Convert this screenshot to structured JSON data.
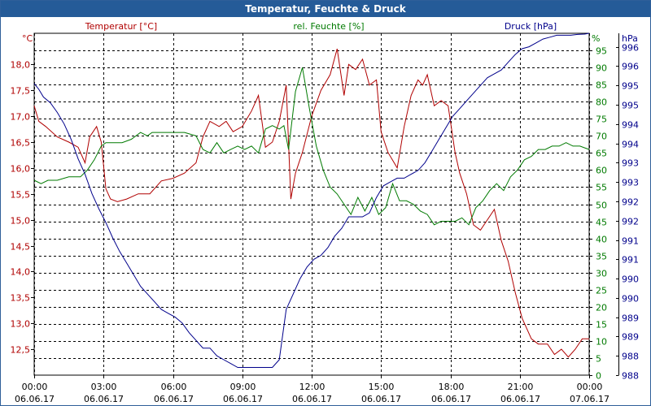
{
  "window": {
    "title": "Temperatur, Feuchte & Druck"
  },
  "colors": {
    "temperature": "#b00000",
    "humidity": "#007a00",
    "pressure": "#00008b",
    "grid": "#000000",
    "title_bg": "#255b98"
  },
  "chart_data": {
    "type": "line",
    "title": "Temperatur, Feuchte & Druck",
    "grid": true,
    "x_ticks": [
      {
        "time": "00:00",
        "date": "06.06.17"
      },
      {
        "time": "03:00",
        "date": "06.06.17"
      },
      {
        "time": "06:00",
        "date": "06.06.17"
      },
      {
        "time": "09:00",
        "date": "06.06.17"
      },
      {
        "time": "12:00",
        "date": "06.06.17"
      },
      {
        "time": "15:00",
        "date": "06.06.17"
      },
      {
        "time": "18:00",
        "date": "06.06.17"
      },
      {
        "time": "21:00",
        "date": "06.06.17"
      },
      {
        "time": "00:00",
        "date": "07.06.17"
      }
    ],
    "x_range_hours": [
      0,
      24
    ],
    "axes": {
      "temperature": {
        "label": "Temperatur [°C]",
        "unit": "°C",
        "range": [
          12,
          18.6
        ],
        "ticks": [
          {
            "v": 12.5,
            "t": "12,5"
          },
          {
            "v": 13,
            "t": "13,0"
          },
          {
            "v": 13.5,
            "t": "13,5"
          },
          {
            "v": 14,
            "t": "14,0"
          },
          {
            "v": 14.5,
            "t": "14,5"
          },
          {
            "v": 15,
            "t": "15,0"
          },
          {
            "v": 15.5,
            "t": "15,5"
          },
          {
            "v": 16,
            "t": "16,0"
          },
          {
            "v": 16.5,
            "t": "16,5"
          },
          {
            "v": 17,
            "t": "17,0"
          },
          {
            "v": 17.5,
            "t": "17,5"
          },
          {
            "v": 18,
            "t": "18,0"
          }
        ]
      },
      "humidity": {
        "label": "rel. Feuchte [%]",
        "unit": "%",
        "range": [
          0,
          100
        ],
        "ticks": [
          0,
          5,
          10,
          15,
          20,
          25,
          30,
          35,
          40,
          45,
          50,
          55,
          60,
          65,
          70,
          75,
          80,
          85,
          90,
          95
        ]
      },
      "pressure": {
        "label": "Druck [hPa]",
        "unit": "hPa",
        "range": [
          987.8,
          996.65
        ],
        "ticks": [
          {
            "v": 987.8,
            "t": "988"
          },
          {
            "v": 988.3,
            "t": "988"
          },
          {
            "v": 988.8,
            "t": "989"
          },
          {
            "v": 989.3,
            "t": "989"
          },
          {
            "v": 989.8,
            "t": "990"
          },
          {
            "v": 990.3,
            "t": "990"
          },
          {
            "v": 990.8,
            "t": "991"
          },
          {
            "v": 991.3,
            "t": "991"
          },
          {
            "v": 991.8,
            "t": "992"
          },
          {
            "v": 992.3,
            "t": "992"
          },
          {
            "v": 992.8,
            "t": "993"
          },
          {
            "v": 993.3,
            "t": "993"
          },
          {
            "v": 993.8,
            "t": "994"
          },
          {
            "v": 994.3,
            "t": "994"
          },
          {
            "v": 994.8,
            "t": "995"
          },
          {
            "v": 995.3,
            "t": "995"
          },
          {
            "v": 995.8,
            "t": "996"
          },
          {
            "v": 996.3,
            "t": "996"
          }
        ]
      }
    },
    "series": [
      {
        "name": "Temperatur [°C]",
        "axis": "temperature",
        "x": [
          0,
          0.2,
          0.5,
          1,
          1.5,
          1.9,
          2.2,
          2.4,
          2.7,
          2.9,
          3.1,
          3.3,
          3.6,
          4,
          4.5,
          5,
          5.5,
          6,
          6.5,
          7,
          7.3,
          7.6,
          8,
          8.3,
          8.6,
          9,
          9.4,
          9.7,
          10,
          10.3,
          10.6,
          10.9,
          11.1,
          11.3,
          11.6,
          12,
          12.4,
          12.8,
          13.1,
          13.4,
          13.6,
          13.9,
          14.2,
          14.5,
          14.8,
          15,
          15.3,
          15.7,
          16,
          16.3,
          16.6,
          16.8,
          17,
          17.3,
          17.6,
          17.9,
          18.2,
          18.4,
          18.7,
          19,
          19.3,
          19.6,
          19.9,
          20.2,
          20.5,
          20.8,
          21.1,
          21.5,
          21.8,
          22.2,
          22.5,
          22.8,
          23.1,
          23.4,
          23.7,
          24
        ],
        "y": [
          17.2,
          16.9,
          16.8,
          16.6,
          16.5,
          16.4,
          16.1,
          16.6,
          16.8,
          16.5,
          15.6,
          15.4,
          15.35,
          15.4,
          15.5,
          15.5,
          15.75,
          15.8,
          15.9,
          16.1,
          16.6,
          16.9,
          16.8,
          16.9,
          16.7,
          16.8,
          17.1,
          17.4,
          16.4,
          16.5,
          16.9,
          17.6,
          15.4,
          15.9,
          16.3,
          17.0,
          17.5,
          17.8,
          18.3,
          17.4,
          18.0,
          17.9,
          18.1,
          17.6,
          17.7,
          16.7,
          16.3,
          16.0,
          16.8,
          17.4,
          17.7,
          17.6,
          17.8,
          17.2,
          17.3,
          17.2,
          16.3,
          15.9,
          15.5,
          14.9,
          14.8,
          15.0,
          15.2,
          14.6,
          14.2,
          13.6,
          13.1,
          12.7,
          12.6,
          12.6,
          12.4,
          12.5,
          12.35,
          12.5,
          12.7,
          12.7
        ]
      },
      {
        "name": "rel. Feuchte [%]",
        "axis": "humidity",
        "x": [
          0,
          0.3,
          0.6,
          1,
          1.5,
          2,
          2.3,
          2.6,
          2.9,
          3.1,
          3.4,
          3.8,
          4.2,
          4.6,
          4.9,
          5.1,
          5.5,
          6,
          6.5,
          7,
          7.3,
          7.6,
          7.9,
          8.2,
          8.5,
          8.8,
          9.1,
          9.4,
          9.7,
          10,
          10.3,
          10.6,
          10.8,
          11,
          11.3,
          11.6,
          11.9,
          12.2,
          12.5,
          12.8,
          13.1,
          13.4,
          13.7,
          14,
          14.3,
          14.6,
          14.9,
          15.2,
          15.5,
          15.8,
          16.1,
          16.4,
          16.7,
          17,
          17.3,
          17.6,
          17.9,
          18.2,
          18.5,
          18.8,
          19.1,
          19.4,
          19.7,
          20,
          20.3,
          20.6,
          20.9,
          21.2,
          21.5,
          21.8,
          22.1,
          22.4,
          22.7,
          23,
          23.3,
          23.6,
          24
        ],
        "y": [
          57,
          56,
          57,
          57,
          58,
          58,
          60,
          63,
          67,
          68,
          68,
          68,
          69,
          71,
          70,
          71,
          71,
          71,
          71,
          70,
          66,
          65,
          68,
          65,
          66,
          67,
          66,
          67,
          65,
          72,
          73,
          72,
          73,
          66,
          83,
          90,
          78,
          67,
          60,
          55,
          53,
          50,
          47,
          52,
          48,
          52,
          47,
          49,
          56,
          51,
          51,
          50,
          48,
          47,
          44,
          45,
          45,
          45,
          46,
          44,
          49,
          51,
          54,
          56,
          54,
          58,
          60,
          63,
          64,
          66,
          66,
          67,
          67,
          68,
          67,
          67,
          66
        ]
      },
      {
        "name": "Druck [hPa]",
        "axis": "pressure",
        "x": [
          0,
          0.2,
          0.4,
          0.7,
          1,
          1.3,
          1.6,
          1.9,
          2.2,
          2.5,
          2.8,
          3.1,
          3.4,
          3.7,
          4,
          4.3,
          4.6,
          4.9,
          5.2,
          5.5,
          5.8,
          6.1,
          6.4,
          6.7,
          7,
          7.3,
          7.6,
          7.9,
          8.2,
          8.5,
          8.8,
          9.1,
          9.4,
          9.7,
          10,
          10.3,
          10.6,
          10.9,
          11.2,
          11.5,
          11.8,
          12.1,
          12.4,
          12.7,
          13,
          13.3,
          13.6,
          13.9,
          14.2,
          14.5,
          14.8,
          15.1,
          15.4,
          15.7,
          16,
          16.3,
          16.6,
          16.9,
          17.2,
          17.5,
          17.8,
          18.1,
          18.4,
          18.7,
          19,
          19.3,
          19.6,
          19.9,
          20.2,
          20.5,
          20.8,
          21.1,
          21.4,
          21.7,
          22,
          22.3,
          22.6,
          22.9,
          23.2,
          23.5,
          23.8,
          24
        ],
        "y": [
          995.35,
          995.2,
          995.0,
          994.85,
          994.6,
          994.3,
          993.9,
          993.4,
          993.0,
          992.5,
          992.1,
          991.75,
          991.35,
          991.0,
          990.7,
          990.4,
          990.1,
          989.9,
          989.7,
          989.5,
          989.4,
          989.3,
          989.15,
          988.9,
          988.7,
          988.5,
          988.5,
          988.3,
          988.2,
          988.1,
          988.0,
          988.0,
          988.0,
          988.0,
          988.0,
          988.0,
          988.2,
          989.5,
          989.9,
          990.3,
          990.6,
          990.8,
          990.9,
          991.1,
          991.4,
          991.6,
          991.9,
          991.9,
          991.9,
          992.0,
          992.4,
          992.7,
          992.8,
          992.9,
          992.9,
          993.0,
          993.1,
          993.3,
          993.6,
          993.9,
          994.2,
          994.5,
          994.7,
          994.9,
          995.1,
          995.3,
          995.5,
          995.6,
          995.7,
          995.9,
          996.1,
          996.25,
          996.3,
          996.4,
          996.5,
          996.55,
          996.6,
          996.6,
          996.6,
          996.62,
          996.63,
          996.65
        ]
      }
    ]
  }
}
